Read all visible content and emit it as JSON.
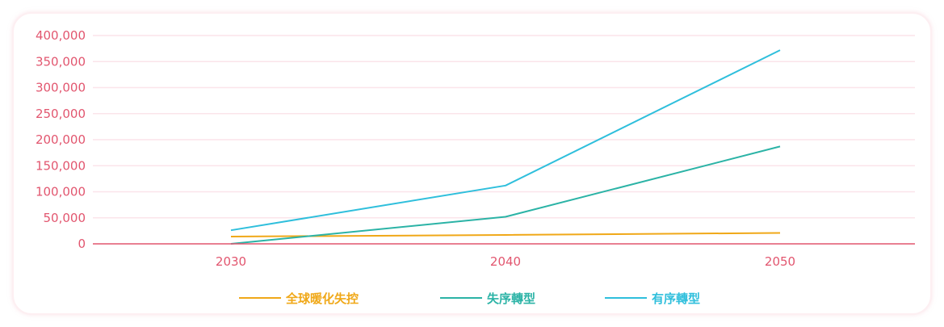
{
  "chart_data": {
    "type": "line",
    "categories": [
      "2030",
      "2040",
      "2050"
    ],
    "ylim": [
      0,
      400000
    ],
    "y_ticks": [
      0,
      50000,
      100000,
      150000,
      200000,
      250000,
      300000,
      350000,
      400000
    ],
    "y_tick_labels": [
      "0",
      "50,000",
      "100,000",
      "150,000",
      "200,000",
      "250,000",
      "300,000",
      "350,000",
      "400,000"
    ],
    "grid": true,
    "legend_position": "bottom",
    "series": [
      {
        "name": "全球暖化失控",
        "color": "#f0a818",
        "values": [
          14000,
          17000,
          21000
        ]
      },
      {
        "name": "失序轉型",
        "color": "#2bb3a6",
        "values": [
          0,
          52000,
          187000
        ]
      },
      {
        "name": "有序轉型",
        "color": "#2fbfdc",
        "values": [
          26000,
          112000,
          372000
        ]
      }
    ],
    "colors": {
      "axis_text": "#e2566f",
      "grid": "#fbe4ea",
      "baseline": "#e2566f"
    }
  }
}
